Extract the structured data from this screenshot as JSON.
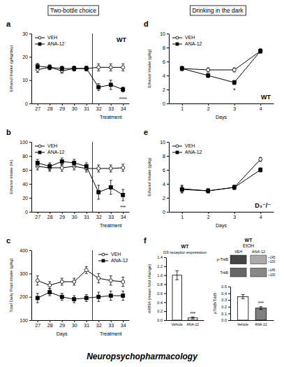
{
  "chart_data": [
    {
      "type": "line",
      "ylabel": "Ethanol Intake (g/kg/day)",
      "x": [
        27,
        28,
        29,
        30,
        31,
        32,
        33,
        34
      ],
      "xlim": [
        26.5,
        34.5
      ],
      "xticks": [
        27,
        28,
        29,
        30,
        31,
        32,
        33,
        34
      ],
      "ylim": [
        0,
        30
      ],
      "yticks": [
        0,
        10,
        20,
        30
      ],
      "vline": 31.5,
      "grid": false,
      "legend": "upper left",
      "series": [
        {
          "name": "VEH",
          "color": "black",
          "marker": "open-circle",
          "line_style": "solid",
          "values": [
            14.5,
            15.5,
            14.0,
            15.0,
            15.0,
            15.5,
            15.5,
            15.5
          ],
          "errors": [
            1.2,
            1.0,
            1.0,
            1.0,
            1.0,
            1.5,
            1.5,
            1.5
          ]
        },
        {
          "name": "ANA-12",
          "color": "black",
          "marker": "square",
          "line_style": "solid",
          "values": [
            16.0,
            15.5,
            15.0,
            15.0,
            15.0,
            7.0,
            8.0,
            6.0
          ],
          "errors": [
            1.2,
            1.0,
            1.0,
            1.0,
            1.0,
            1.5,
            2.0,
            1.0
          ]
        }
      ],
      "annotations": [
        "a",
        "WT",
        "Treatment",
        "****"
      ]
    },
    {
      "type": "line",
      "ylabel": "Ethanol Intake (%)",
      "x": [
        27,
        28,
        29,
        30,
        31,
        32,
        33,
        34
      ],
      "xlim": [
        26.5,
        34.5
      ],
      "xticks": [
        27,
        28,
        29,
        30,
        31,
        32,
        33,
        34
      ],
      "ylim": [
        0,
        100
      ],
      "yticks": [
        0,
        20,
        40,
        60,
        80,
        100
      ],
      "vline": 31.5,
      "grid": false,
      "legend": "upper left",
      "series": [
        {
          "name": "VEH",
          "color": "black",
          "marker": "open-circle",
          "line_style": "solid",
          "values": [
            65,
            63,
            63,
            65,
            62,
            62,
            62,
            63
          ],
          "errors": [
            5,
            5,
            5,
            5,
            5,
            5,
            5,
            5
          ]
        },
        {
          "name": "ANA-12",
          "color": "black",
          "marker": "square",
          "line_style": "solid",
          "values": [
            70,
            65,
            72,
            70,
            65,
            28,
            35,
            24
          ],
          "errors": [
            5,
            5,
            5,
            5,
            5,
            10,
            10,
            8
          ]
        }
      ],
      "annotations": [
        "b",
        "Treatment",
        "***"
      ]
    },
    {
      "type": "line",
      "ylabel": "Total Daily Fluid Intake (g/kg)",
      "x": [
        27,
        28,
        29,
        30,
        31,
        32,
        33,
        34
      ],
      "xlim": [
        26.5,
        34.5
      ],
      "xticks": [
        27,
        28,
        29,
        30,
        31,
        32,
        33,
        34
      ],
      "ylim": [
        100,
        400
      ],
      "yticks": [
        100,
        200,
        300,
        400
      ],
      "vline": 31.5,
      "grid": false,
      "legend": "upper right",
      "series": [
        {
          "name": "VEH",
          "color": "black",
          "marker": "open-circle",
          "line_style": "solid",
          "values": [
            270,
            250,
            265,
            265,
            315,
            280,
            270,
            265
          ],
          "errors": [
            20,
            15,
            15,
            15,
            15,
            20,
            20,
            20
          ]
        },
        {
          "name": "ANA-12",
          "color": "black",
          "marker": "square",
          "line_style": "solid",
          "values": [
            195,
            220,
            200,
            190,
            195,
            200,
            205,
            205
          ],
          "errors": [
            20,
            15,
            15,
            15,
            15,
            20,
            20,
            20
          ]
        }
      ],
      "annotations": [
        "c",
        "Days",
        "Treatment"
      ]
    },
    {
      "type": "line",
      "ylabel": "Ethanol Intake (g/kg)",
      "xlabel": "Days",
      "x": [
        1,
        2,
        3,
        4
      ],
      "xlim": [
        0.5,
        4.5
      ],
      "xticks": [
        1,
        2,
        3,
        4
      ],
      "ylim": [
        0,
        10
      ],
      "yticks": [
        0,
        2,
        4,
        6,
        8,
        10
      ],
      "grid": false,
      "legend": "upper left",
      "series": [
        {
          "name": "VEH",
          "color": "black",
          "marker": "open-circle",
          "line_style": "solid",
          "values": [
            5.0,
            4.8,
            4.8,
            7.5
          ],
          "errors": [
            0.3,
            0.3,
            0.3,
            0.3
          ]
        },
        {
          "name": "ANA-12",
          "color": "black",
          "marker": "square",
          "line_style": "solid",
          "values": [
            5.0,
            4.0,
            3.0,
            7.5
          ],
          "errors": [
            0.3,
            0.3,
            0.3,
            0.3
          ]
        }
      ],
      "annotations": [
        "d",
        "WT",
        "*"
      ]
    },
    {
      "type": "line",
      "ylabel": "Ethanol Intake (g/kg)",
      "xlabel": "Days",
      "x": [
        1,
        2,
        3,
        4
      ],
      "xlim": [
        0.5,
        4.5
      ],
      "xticks": [
        1,
        2,
        3,
        4
      ],
      "ylim": [
        0,
        10
      ],
      "yticks": [
        0,
        2,
        4,
        6,
        8,
        10
      ],
      "grid": false,
      "legend": "upper left",
      "series": [
        {
          "name": "VEH",
          "color": "black",
          "marker": "open-circle",
          "line_style": "solid",
          "values": [
            3.3,
            3.0,
            3.5,
            7.5
          ],
          "errors": [
            0.5,
            0.3,
            0.3,
            0.3
          ]
        },
        {
          "name": "ANA-12",
          "color": "black",
          "marker": "square",
          "line_style": "solid",
          "values": [
            3.2,
            3.0,
            3.5,
            6.0
          ],
          "errors": [
            0.5,
            0.3,
            0.3,
            0.3
          ]
        }
      ],
      "annotations": [
        "e",
        "D₃⁻/⁻"
      ]
    },
    {
      "type": "bar",
      "title": "WT",
      "subtitle": "D3 receptor expression",
      "categories": [
        "Vehicle",
        "ANA-12"
      ],
      "values": [
        1.0,
        0.05
      ],
      "errors": [
        0.1,
        0.02
      ],
      "colors": [
        "white",
        "white"
      ],
      "ylabel": "mRNA (mean fold change)",
      "ylim": [
        0,
        1.4
      ],
      "yticks": [
        {
          "value": 0,
          "label": "0.0"
        },
        0.2,
        0.4,
        0.6,
        0.8,
        {
          "value": 1,
          "label": "1.0"
        },
        1.2,
        1.4
      ],
      "grid": false,
      "annotations": [
        "f",
        "***"
      ]
    },
    {
      "type": "blot",
      "title": "WT",
      "subtitle": "EtOH",
      "categories": [
        "VEH",
        "ANA-12"
      ],
      "series": [
        {
          "name": "p-TrkB",
          "colors": [
            "#444444",
            "#aaaaaa"
          ],
          "annotations": [
            "~145",
            "~100"
          ]
        },
        {
          "name": "TrkB",
          "colors": [
            "#666666",
            "#888888"
          ],
          "annotations": [
            "~145",
            "~100"
          ]
        }
      ]
    },
    {
      "type": "bar",
      "categories": [
        "Vehicle",
        "ANA-12"
      ],
      "values": [
        0.35,
        0.18
      ],
      "errors": [
        0.03,
        0.02
      ],
      "colors": [
        "white",
        "gray"
      ],
      "ylabel": "pTrkB/TrkB",
      "ylim": [
        0.0,
        0.5
      ],
      "yticks": [
        {
          "value": 0,
          "label": "0.0"
        },
        0.1,
        0.2,
        0.3,
        0.4,
        0.5
      ],
      "grid": false,
      "annotations": [
        "***"
      ]
    }
  ],
  "annotations": [
    "Two-bottle choice",
    "Drinking in the dark",
    "Neuropsychopharmacology"
  ]
}
